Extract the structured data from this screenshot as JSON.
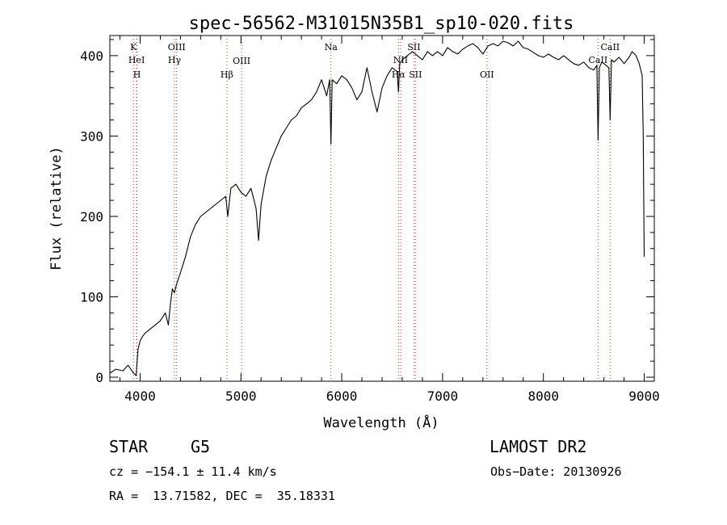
{
  "chart_data": {
    "type": "line",
    "title": "spec-56562-M31015N35B1_sp10-020.fits",
    "xlabel": "Wavelength (Å)",
    "ylabel": "Flux (relative)",
    "xlim": [
      3700,
      9100
    ],
    "ylim": [
      -5,
      425
    ],
    "xticks": [
      4000,
      5000,
      6000,
      7000,
      8000,
      9000
    ],
    "yticks": [
      0,
      100,
      200,
      300,
      400
    ],
    "grid": false,
    "series": [
      {
        "x": [
          3700,
          3760,
          3830,
          3880,
          3930,
          3960,
          3980,
          4000,
          4020,
          4050,
          4100,
          4150,
          4200,
          4250,
          4280,
          4300,
          4320,
          4340,
          4360,
          4400,
          4450,
          4500,
          4550,
          4600,
          4650,
          4700,
          4750,
          4800,
          4850,
          4870,
          4900,
          4950,
          5000,
          5050,
          5100,
          5150,
          5175,
          5200,
          5250,
          5300,
          5350,
          5400,
          5450,
          5500,
          5550,
          5600,
          5650,
          5700,
          5750,
          5800,
          5850,
          5880,
          5893,
          5905,
          5950,
          6000,
          6050,
          6100,
          6150,
          6200,
          6250,
          6300,
          6350,
          6400,
          6450,
          6500,
          6550,
          6563,
          6575,
          6600,
          6650,
          6700,
          6750,
          6800,
          6850,
          6900,
          6950,
          7000,
          7050,
          7100,
          7150,
          7200,
          7250,
          7300,
          7350,
          7400,
          7450,
          7500,
          7550,
          7600,
          7650,
          7700,
          7750,
          7800,
          7850,
          7900,
          7950,
          8000,
          8050,
          8100,
          8150,
          8200,
          8250,
          8300,
          8350,
          8400,
          8450,
          8500,
          8530,
          8542,
          8555,
          8580,
          8620,
          8650,
          8662,
          8675,
          8700,
          8750,
          8800,
          8850,
          8880,
          8920,
          8950,
          8980,
          8990,
          9000
        ],
        "y": [
          5,
          10,
          8,
          15,
          6,
          2,
          35,
          45,
          50,
          55,
          60,
          65,
          70,
          80,
          65,
          90,
          110,
          105,
          115,
          130,
          150,
          175,
          190,
          200,
          205,
          210,
          215,
          220,
          225,
          200,
          235,
          240,
          230,
          225,
          235,
          210,
          170,
          215,
          250,
          270,
          285,
          300,
          310,
          320,
          325,
          335,
          340,
          345,
          355,
          370,
          350,
          370,
          290,
          370,
          365,
          375,
          370,
          360,
          345,
          355,
          385,
          355,
          330,
          360,
          375,
          385,
          380,
          355,
          390,
          395,
          400,
          405,
          400,
          395,
          405,
          400,
          405,
          400,
          410,
          405,
          402,
          408,
          412,
          415,
          410,
          402,
          412,
          415,
          412,
          418,
          416,
          412,
          418,
          410,
          408,
          404,
          400,
          398,
          402,
          398,
          395,
          400,
          395,
          390,
          388,
          392,
          385,
          382,
          388,
          295,
          385,
          392,
          388,
          385,
          320,
          395,
          392,
          398,
          390,
          398,
          405,
          400,
          390,
          375,
          300,
          150
        ]
      }
    ],
    "line_markers": [
      {
        "label": "K",
        "x": 3934
      },
      {
        "label": "HeI",
        "x": 3965
      },
      {
        "label": "H",
        "x": 3969
      },
      {
        "label": "OIII",
        "x": 4363
      },
      {
        "label": "Hγ",
        "x": 4341
      },
      {
        "label": "Hβ",
        "x": 4861
      },
      {
        "label": "OIII",
        "x": 5007
      },
      {
        "label": "Na",
        "x": 5893
      },
      {
        "label": "SII",
        "x": 6716
      },
      {
        "label": "NII",
        "x": 6584
      },
      {
        "label": "Hα",
        "x": 6563
      },
      {
        "label": "SII",
        "x": 6731
      },
      {
        "label": "OII",
        "x": 7440
      },
      {
        "label": "CaII",
        "x": 8662
      },
      {
        "label": "CaII",
        "x": 8542
      }
    ]
  },
  "info": {
    "object_class": "STAR",
    "subclass": "G5",
    "survey": "LAMOST DR2",
    "redshift": "cz = −154.1 ± 11.4 km/s",
    "obs_date": "Obs−Date: 20130926",
    "radec": "RA =  13.71582, DEC =  35.18331"
  }
}
